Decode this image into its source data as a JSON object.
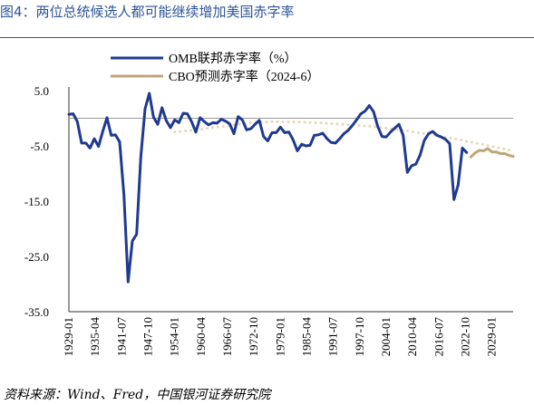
{
  "figure_title": "图4：两位总统候选人都可能继续增加美国赤字率",
  "source_note": "资料来源：Wind、Fred，中国银河证券研究院",
  "colors": {
    "title": "#2f5597",
    "omb_series": "#1f3a8f",
    "cbo_series": "#c2a577",
    "trend_dots": "#e5d6b8",
    "zero_line": "#9a9a9a",
    "axis": "#333333"
  },
  "chart_data": {
    "type": "line",
    "title": "",
    "xlabel": "",
    "ylabel": "",
    "ylim": [
      -35,
      5
    ],
    "yticks": [
      5.0,
      -5.0,
      -15.0,
      -25.0,
      -35.0
    ],
    "ytick_labels": [
      "5.0",
      "-5.0",
      "-15.0",
      "-25.0",
      "-35.0"
    ],
    "xlim": [
      1929,
      2034
    ],
    "xticks": [
      "1929-01",
      "1935-04",
      "1941-07",
      "1947-10",
      "1954-01",
      "1960-04",
      "1966-07",
      "1972-10",
      "1979-01",
      "1985-04",
      "1991-07",
      "1997-10",
      "2004-01",
      "2010-04",
      "2016-07",
      "2022-10",
      "2029-01"
    ],
    "grid": false,
    "legend": {
      "placement": "top-center"
    },
    "series": [
      {
        "name": "OMB联邦赤字率（%）",
        "color": "#1f3a8f",
        "style": "solid",
        "x": [
          1929,
          1930,
          1931,
          1932,
          1933,
          1934,
          1935,
          1936,
          1937,
          1938,
          1939,
          1940,
          1941,
          1942,
          1943,
          1944,
          1945,
          1946,
          1947,
          1948,
          1949,
          1950,
          1951,
          1952,
          1953,
          1954,
          1955,
          1956,
          1957,
          1958,
          1959,
          1960,
          1961,
          1962,
          1963,
          1964,
          1965,
          1966,
          1967,
          1968,
          1969,
          1970,
          1971,
          1972,
          1973,
          1974,
          1975,
          1976,
          1977,
          1978,
          1979,
          1980,
          1981,
          1982,
          1983,
          1984,
          1985,
          1986,
          1987,
          1988,
          1989,
          1990,
          1991,
          1992,
          1993,
          1994,
          1995,
          1996,
          1997,
          1998,
          1999,
          2000,
          2001,
          2002,
          2003,
          2004,
          2005,
          2006,
          2007,
          2008,
          2009,
          2010,
          2011,
          2012,
          2013,
          2014,
          2015,
          2016,
          2017,
          2018,
          2019,
          2020,
          2021,
          2022,
          2023
        ],
        "values": [
          0.7,
          0.8,
          -0.6,
          -4.5,
          -4.5,
          -5.4,
          -3.7,
          -5.1,
          -2.4,
          0.1,
          -3.1,
          -3.0,
          -4.3,
          -13.9,
          -29.6,
          -22.2,
          -21.0,
          -7.0,
          1.7,
          4.5,
          0.2,
          -1.1,
          1.9,
          -0.4,
          -1.7,
          -0.3,
          -0.8,
          0.9,
          0.8,
          -0.6,
          -2.5,
          0.1,
          -0.6,
          -1.2,
          -0.8,
          -0.9,
          -0.2,
          -0.5,
          -1.0,
          -2.8,
          0.3,
          -0.3,
          -2.1,
          -1.9,
          -1.1,
          -0.4,
          -3.3,
          -4.1,
          -2.6,
          -2.6,
          -1.6,
          -2.6,
          -2.5,
          -3.9,
          -5.9,
          -4.7,
          -5.0,
          -4.9,
          -3.1,
          -3.0,
          -2.7,
          -3.7,
          -4.4,
          -4.5,
          -3.7,
          -2.8,
          -2.2,
          -1.3,
          -0.3,
          0.8,
          1.3,
          2.3,
          1.2,
          -1.5,
          -3.3,
          -3.4,
          -2.5,
          -1.8,
          -1.1,
          -3.1,
          -9.8,
          -8.6,
          -8.3,
          -6.7,
          -4.0,
          -2.8,
          -2.4,
          -3.1,
          -3.4,
          -3.8,
          -4.6,
          -14.7,
          -12.1,
          -5.4,
          -6.2
        ]
      },
      {
        "name": "CBO预测赤字率（2024-6）",
        "color": "#c2a577",
        "style": "solid",
        "x": [
          2024,
          2025,
          2026,
          2027,
          2028,
          2029,
          2030,
          2031,
          2032,
          2033,
          2034
        ],
        "values": [
          -7.0,
          -6.3,
          -5.8,
          -5.9,
          -5.5,
          -6.1,
          -6.1,
          -6.4,
          -6.4,
          -6.7,
          -6.9
        ]
      },
      {
        "color": "#e5d6b8",
        "style": "dotted",
        "x": [
          1954,
          1960,
          1966,
          1972,
          1978,
          1984,
          1990,
          1996,
          2002,
          2008,
          2014,
          2020,
          2026,
          2034
        ],
        "values": [
          -2.5,
          -2.0,
          -1.4,
          -0.8,
          -0.6,
          -0.7,
          -0.9,
          -1.2,
          -1.6,
          -2.2,
          -2.9,
          -3.7,
          -4.6,
          -5.9
        ]
      }
    ]
  }
}
